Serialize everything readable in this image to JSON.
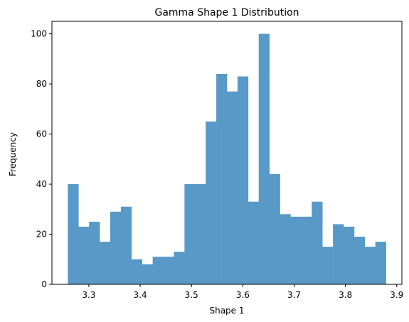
{
  "chart_data": {
    "type": "bar",
    "title": "Gamma Shape 1 Distribution",
    "xlabel": "Shape 1",
    "ylabel": "Frequency",
    "bin_start": 3.259,
    "bin_end": 3.879,
    "values": [
      40,
      23,
      25,
      17,
      29,
      31,
      10,
      8,
      11,
      11,
      13,
      40,
      40,
      65,
      84,
      77,
      83,
      33,
      100,
      44,
      28,
      27,
      27,
      33,
      15,
      24,
      23,
      19,
      15,
      17
    ],
    "xlim": [
      3.228,
      3.91
    ],
    "ylim": [
      0,
      105
    ],
    "xticks": [
      3.3,
      3.4,
      3.5,
      3.6,
      3.7,
      3.8,
      3.9
    ],
    "xtick_labels": [
      "3.3",
      "3.4",
      "3.5",
      "3.6",
      "3.7",
      "3.8",
      "3.9"
    ],
    "yticks": [
      0,
      20,
      40,
      60,
      80,
      100
    ],
    "ytick_labels": [
      "0",
      "20",
      "40",
      "60",
      "80",
      "100"
    ],
    "bar_color": "#5899c7",
    "grid": false,
    "legend": false
  }
}
